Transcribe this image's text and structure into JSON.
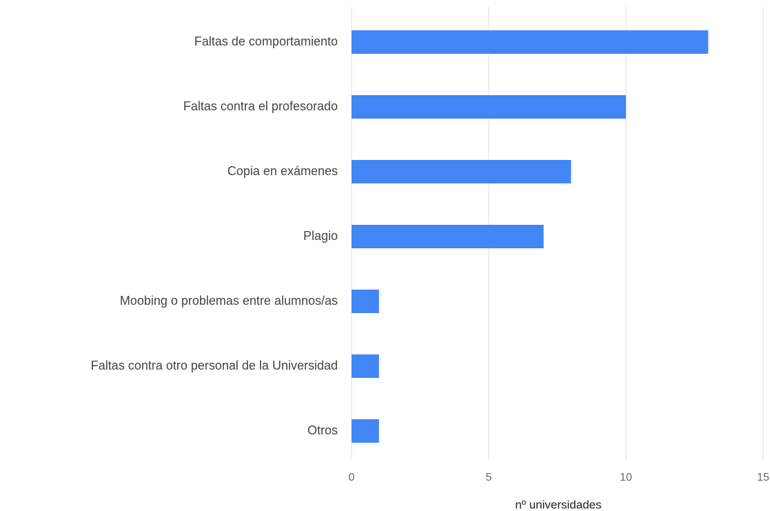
{
  "chart_data": {
    "type": "bar",
    "orientation": "horizontal",
    "categories": [
      "Faltas de comportamiento",
      "Faltas contra el profesorado",
      "Copia en exámenes",
      "Plagio",
      "Moobing o problemas entre alumnos/as",
      "Faltas contra otro personal de la Universidad",
      "Otros"
    ],
    "values": [
      13,
      10,
      8,
      7,
      1,
      1,
      1
    ],
    "color": "#4285f4",
    "xlabel": "nº universidades",
    "xlim": [
      0,
      15
    ],
    "xticks": [
      0,
      5,
      10,
      15
    ],
    "grid": true
  }
}
